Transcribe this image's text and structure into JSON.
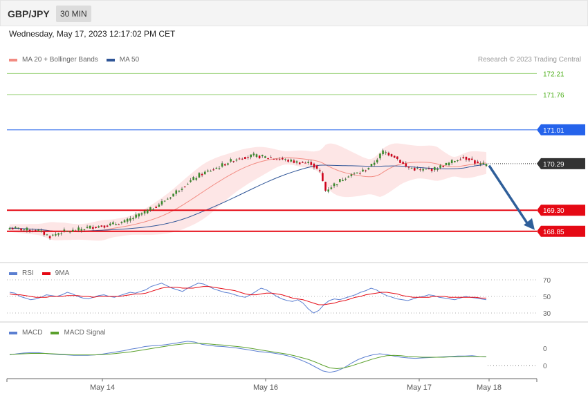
{
  "header": {
    "symbol": "GBP/JPY",
    "timeframe": "30 MIN",
    "datetime": "Wednesday, May 17, 2023 12:17:02 PM CET"
  },
  "legend": {
    "ma20": "MA 20 + Bollinger Bands",
    "ma50": "MA 50",
    "credit": "Research © 2023 Trading Central",
    "ma20_color": "#f28b82",
    "ma50_color": "#2f5597"
  },
  "colors": {
    "bull": "#3a8a2c",
    "bear": "#d0021b",
    "band": "#fde2e2",
    "resistance": "#2563eb",
    "support": "#e50914",
    "target_line": "#9bd27a",
    "arrow": "#2f5f9a"
  },
  "chart_data": [
    {
      "type": "candlestick",
      "name": "price",
      "ylim": [
        168.2,
        172.45
      ],
      "x_labels": [
        "May 14",
        "May 16",
        "May 17",
        "May 18"
      ],
      "current_price": "170.29",
      "levels": [
        {
          "label": "172.21",
          "kind": "target"
        },
        {
          "label": "171.76",
          "kind": "target"
        },
        {
          "label": "171.01",
          "kind": "resistance"
        },
        {
          "label": "169.30",
          "kind": "support"
        },
        {
          "label": "168.85",
          "kind": "support"
        }
      ],
      "forecast_arrow": {
        "from": 170.25,
        "to": 168.85
      },
      "close_waypoints": [
        [
          0,
          168.92
        ],
        [
          10,
          168.86
        ],
        [
          14,
          168.74
        ],
        [
          18,
          168.84
        ],
        [
          22,
          168.86
        ],
        [
          28,
          168.94
        ],
        [
          34,
          168.98
        ],
        [
          40,
          169.05
        ],
        [
          45,
          169.2
        ],
        [
          50,
          169.35
        ],
        [
          55,
          169.55
        ],
        [
          60,
          169.8
        ],
        [
          66,
          170.05
        ],
        [
          72,
          170.2
        ],
        [
          76,
          170.32
        ],
        [
          80,
          170.42
        ],
        [
          85,
          170.46
        ],
        [
          90,
          170.42
        ],
        [
          95,
          170.38
        ],
        [
          100,
          170.32
        ],
        [
          105,
          170.3
        ],
        [
          108,
          170.1
        ],
        [
          110,
          169.72
        ],
        [
          113,
          169.85
        ],
        [
          118,
          170.05
        ],
        [
          122,
          170.1
        ],
        [
          126,
          170.25
        ],
        [
          130,
          170.55
        ],
        [
          134,
          170.45
        ],
        [
          138,
          170.22
        ],
        [
          143,
          170.15
        ],
        [
          148,
          170.18
        ],
        [
          153,
          170.3
        ],
        [
          157,
          170.42
        ],
        [
          160,
          170.4
        ],
        [
          163,
          170.28
        ],
        [
          166,
          170.26
        ]
      ]
    },
    {
      "type": "line",
      "name": "RSI",
      "ylim": [
        20,
        80
      ],
      "ticks": [
        "70",
        "50",
        "30"
      ],
      "series": [
        {
          "name": "RSI",
          "color": "#5b7fd1",
          "values": [
            55,
            54,
            50,
            48,
            46,
            47,
            49,
            52,
            51,
            50,
            52,
            55,
            53,
            50,
            48,
            47,
            49,
            51,
            52,
            50,
            49,
            51,
            53,
            55,
            54,
            56,
            58,
            62,
            64,
            66,
            63,
            60,
            58,
            56,
            60,
            63,
            66,
            65,
            62,
            59,
            57,
            55,
            54,
            52,
            50,
            49,
            52,
            56,
            60,
            58,
            54,
            50,
            47,
            45,
            44,
            46,
            42,
            35,
            30,
            33,
            40,
            45,
            47,
            46,
            48,
            50,
            52,
            55,
            57,
            60,
            58,
            54,
            51,
            49,
            47,
            46,
            45,
            47,
            49,
            50,
            52,
            51,
            49,
            48,
            47,
            46,
            48,
            50,
            49,
            48,
            47,
            46
          ]
        },
        {
          "name": "9MA",
          "color": "#e50914",
          "values": [
            53,
            52,
            52,
            51,
            50,
            49,
            49,
            49,
            50,
            50,
            50,
            51,
            51,
            51,
            50,
            50,
            49,
            50,
            50,
            50,
            50,
            50,
            51,
            52,
            53,
            53,
            54,
            56,
            58,
            60,
            61,
            61,
            61,
            60,
            60,
            60,
            61,
            62,
            62,
            61,
            60,
            59,
            58,
            57,
            55,
            53,
            52,
            52,
            53,
            54,
            54,
            53,
            52,
            50,
            48,
            47,
            46,
            44,
            42,
            40,
            40,
            41,
            42,
            44,
            45,
            47,
            49,
            50,
            52,
            53,
            54,
            55,
            55,
            54,
            53,
            51,
            50,
            49,
            49,
            49,
            49,
            50,
            50,
            50,
            49,
            49,
            49,
            49,
            49,
            49,
            48,
            48
          ]
        }
      ]
    },
    {
      "type": "line",
      "name": "MACD",
      "ylim": [
        -0.55,
        0.45
      ],
      "ticks": [
        "0",
        "0"
      ],
      "series": [
        {
          "name": "MACD",
          "color": "#5b7fd1",
          "values": [
            0.02,
            0.05,
            0.07,
            0.08,
            0.08,
            0.06,
            0.04,
            0.03,
            0.02,
            0.01,
            0.01,
            0.01,
            0.02,
            0.04,
            0.07,
            0.1,
            0.13,
            0.17,
            0.2,
            0.24,
            0.26,
            0.27,
            0.29,
            0.32,
            0.35,
            0.38,
            0.36,
            0.3,
            0.27,
            0.25,
            0.24,
            0.22,
            0.2,
            0.17,
            0.14,
            0.11,
            0.09,
            0.07,
            0.04,
            0.0,
            -0.05,
            -0.12,
            -0.2,
            -0.3,
            -0.4,
            -0.44,
            -0.4,
            -0.32,
            -0.2,
            -0.1,
            -0.03,
            0.02,
            0.05,
            0.03,
            -0.01,
            -0.04,
            -0.06,
            -0.07,
            -0.06,
            -0.05,
            -0.04,
            -0.03,
            -0.02,
            -0.01,
            -0.01,
            0.0,
            -0.02,
            -0.03
          ]
        },
        {
          "name": "MACD Signal",
          "color": "#5aa02c",
          "values": [
            0.03,
            0.04,
            0.05,
            0.06,
            0.06,
            0.06,
            0.05,
            0.04,
            0.03,
            0.02,
            0.02,
            0.02,
            0.02,
            0.03,
            0.04,
            0.06,
            0.08,
            0.1,
            0.13,
            0.16,
            0.19,
            0.22,
            0.25,
            0.28,
            0.3,
            0.32,
            0.33,
            0.32,
            0.31,
            0.29,
            0.28,
            0.26,
            0.24,
            0.22,
            0.19,
            0.16,
            0.13,
            0.1,
            0.07,
            0.04,
            0.0,
            -0.05,
            -0.1,
            -0.17,
            -0.25,
            -0.32,
            -0.34,
            -0.32,
            -0.27,
            -0.21,
            -0.15,
            -0.09,
            -0.04,
            0.0,
            0.01,
            0.0,
            -0.02,
            -0.03,
            -0.04,
            -0.04,
            -0.04,
            -0.04,
            -0.03,
            -0.03,
            -0.02,
            -0.02,
            -0.02,
            -0.03
          ]
        }
      ]
    }
  ]
}
